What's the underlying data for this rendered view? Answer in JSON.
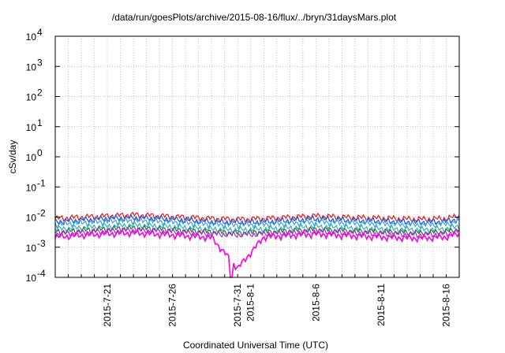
{
  "chart_data": {
    "type": "line",
    "title": "/data/run/goesPlots/archive/2015-08-16/flux/../bryn/31daysMars.plot",
    "xlabel": "Coordinated Universal Time (UTC)",
    "ylabel": "cSv/day",
    "y_scale": "log",
    "ylim": [
      0.0001,
      10000
    ],
    "xlim": [
      "2015-07-17",
      "2015-08-17"
    ],
    "grid": true,
    "legend": "none",
    "y_ticks": [
      {
        "base": "10",
        "exp": "-4"
      },
      {
        "base": "10",
        "exp": "-3"
      },
      {
        "base": "10",
        "exp": "-2"
      },
      {
        "base": "10",
        "exp": "-1"
      },
      {
        "base": "10",
        "exp": "0"
      },
      {
        "base": "10",
        "exp": "1"
      },
      {
        "base": "10",
        "exp": "2"
      },
      {
        "base": "10",
        "exp": "3"
      },
      {
        "base": "10",
        "exp": "4"
      }
    ],
    "x_ticks": [
      "2015-7-21",
      "2015-7-26",
      "2015-7-31",
      "2015-8-1",
      "2015-8-6",
      "2015-8-11",
      "2015-8-16"
    ],
    "x_tick_dates": [
      "2015-07-21",
      "2015-07-26",
      "2015-07-31",
      "2015-08-01",
      "2015-08-06",
      "2015-08-11",
      "2015-08-16"
    ],
    "x_grid_dates": [
      "2015-07-18",
      "2015-07-19",
      "2015-07-20",
      "2015-07-21",
      "2015-07-22",
      "2015-07-23",
      "2015-07-24",
      "2015-07-25",
      "2015-07-26",
      "2015-07-27",
      "2015-07-28",
      "2015-07-29",
      "2015-07-30",
      "2015-07-31",
      "2015-08-01",
      "2015-08-02",
      "2015-08-03",
      "2015-08-04",
      "2015-08-05",
      "2015-08-06",
      "2015-08-07",
      "2015-08-08",
      "2015-08-09",
      "2015-08-10",
      "2015-08-11",
      "2015-08-12",
      "2015-08-13",
      "2015-08-14",
      "2015-08-15",
      "2015-08-16"
    ],
    "series": [
      {
        "color": "#e41a1c",
        "x": [
          "2015-07-17",
          "2015-07-19",
          "2015-07-21",
          "2015-07-23",
          "2015-07-25",
          "2015-07-27",
          "2015-07-29",
          "2015-07-31",
          "2015-08-02",
          "2015-08-04",
          "2015-08-06",
          "2015-08-08",
          "2015-08-10",
          "2015-08-12",
          "2015-08-14",
          "2015-08-16",
          "2015-08-17"
        ],
        "y": [
          0.009,
          0.01,
          0.011,
          0.012,
          0.011,
          0.01,
          0.009,
          0.0085,
          0.009,
          0.01,
          0.011,
          0.01,
          0.0095,
          0.009,
          0.0085,
          0.009,
          0.011
        ]
      },
      {
        "color": "#1f4fd8",
        "x": [
          "2015-07-17",
          "2015-07-19",
          "2015-07-21",
          "2015-07-23",
          "2015-07-25",
          "2015-07-27",
          "2015-07-29",
          "2015-07-31",
          "2015-08-02",
          "2015-08-04",
          "2015-08-06",
          "2015-08-08",
          "2015-08-10",
          "2015-08-12",
          "2015-08-14",
          "2015-08-16",
          "2015-08-17"
        ],
        "y": [
          0.007,
          0.008,
          0.009,
          0.0095,
          0.009,
          0.008,
          0.007,
          0.0068,
          0.007,
          0.0078,
          0.0088,
          0.008,
          0.0076,
          0.0072,
          0.0068,
          0.0072,
          0.009
        ]
      },
      {
        "color": "#3aa0e8",
        "x": [
          "2015-07-17",
          "2015-07-19",
          "2015-07-21",
          "2015-07-23",
          "2015-07-25",
          "2015-07-27",
          "2015-07-29",
          "2015-07-31",
          "2015-08-02",
          "2015-08-04",
          "2015-08-06",
          "2015-08-08",
          "2015-08-10",
          "2015-08-12",
          "2015-08-14",
          "2015-08-16",
          "2015-08-17"
        ],
        "y": [
          0.0058,
          0.0066,
          0.0072,
          0.0078,
          0.0073,
          0.0066,
          0.0059,
          0.0056,
          0.0059,
          0.0064,
          0.0071,
          0.0066,
          0.0062,
          0.0059,
          0.0056,
          0.006,
          0.0072
        ]
      },
      {
        "color": "#2ab7a0",
        "x": [
          "2015-07-17",
          "2015-07-19",
          "2015-07-21",
          "2015-07-23",
          "2015-07-25",
          "2015-07-27",
          "2015-07-29",
          "2015-07-31",
          "2015-08-02",
          "2015-08-04",
          "2015-08-06",
          "2015-08-08",
          "2015-08-10",
          "2015-08-12",
          "2015-08-14",
          "2015-08-16",
          "2015-08-17"
        ],
        "y": [
          0.004,
          0.0045,
          0.005,
          0.0054,
          0.005,
          0.0045,
          0.004,
          0.0038,
          0.004,
          0.0044,
          0.0049,
          0.0045,
          0.0042,
          0.004,
          0.0038,
          0.0041,
          0.005
        ]
      },
      {
        "color": "#2d6b4a",
        "x": [
          "2015-07-17",
          "2015-07-19",
          "2015-07-21",
          "2015-07-23",
          "2015-07-25",
          "2015-07-27",
          "2015-07-29",
          "2015-07-31",
          "2015-08-02",
          "2015-08-04",
          "2015-08-06",
          "2015-08-08",
          "2015-08-10",
          "2015-08-12",
          "2015-08-14",
          "2015-08-16",
          "2015-08-17"
        ],
        "y": [
          0.0032,
          0.0036,
          0.004,
          0.0043,
          0.004,
          0.0036,
          0.0032,
          0.003,
          0.0032,
          0.0035,
          0.0039,
          0.0036,
          0.0034,
          0.0032,
          0.003,
          0.0033,
          0.004
        ]
      },
      {
        "color": "#9b30c8",
        "x": [
          "2015-07-17",
          "2015-07-19",
          "2015-07-21",
          "2015-07-23",
          "2015-07-25",
          "2015-07-27",
          "2015-07-29",
          "2015-07-31",
          "2015-08-02",
          "2015-08-04",
          "2015-08-06",
          "2015-08-08",
          "2015-08-10",
          "2015-08-12",
          "2015-08-14",
          "2015-08-16",
          "2015-08-17"
        ],
        "y": [
          0.0028,
          0.0031,
          0.0035,
          0.0037,
          0.0035,
          0.0031,
          0.0028,
          0.0026,
          0.0028,
          0.003,
          0.0034,
          0.0031,
          0.0029,
          0.0028,
          0.0026,
          0.0028,
          0.0034
        ]
      },
      {
        "color": "#ff00e0",
        "x": [
          "2015-07-17",
          "2015-07-19",
          "2015-07-21",
          "2015-07-23",
          "2015-07-25",
          "2015-07-27",
          "2015-07-29",
          "2015-07-31",
          "2015-08-02",
          "2015-08-04",
          "2015-08-06",
          "2015-08-08",
          "2015-08-10",
          "2015-08-12",
          "2015-08-14",
          "2015-08-16",
          "2015-08-17"
        ],
        "y": [
          0.0022,
          0.0025,
          0.0028,
          0.003,
          0.0027,
          0.0024,
          0.0021,
          0.0002,
          0.0022,
          0.0025,
          0.0028,
          0.0025,
          0.0023,
          0.0021,
          0.002,
          0.0022,
          0.0028
        ]
      }
    ]
  }
}
